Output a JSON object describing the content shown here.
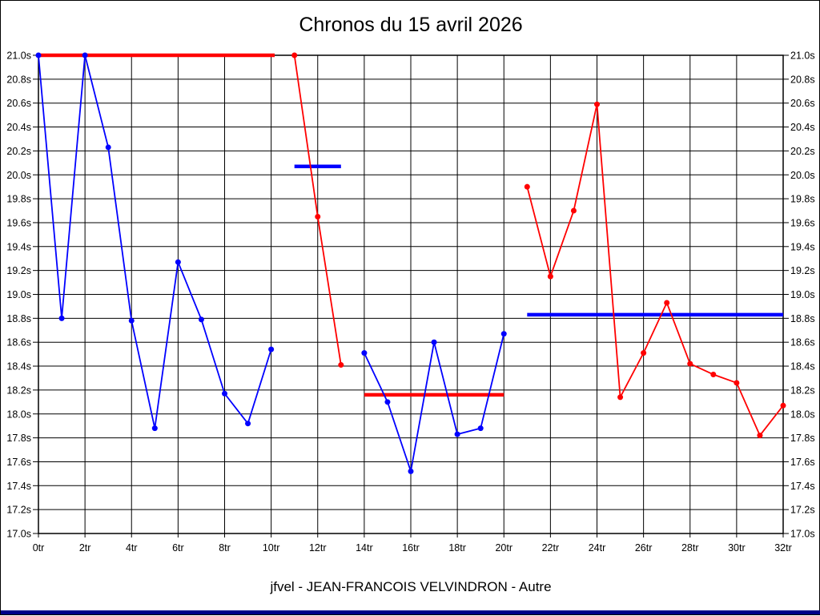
{
  "page": {
    "title": "Chronos du 15 avril 2026",
    "caption": "jfvel - JEAN-FRANCOIS VELVINDRON - Autre"
  },
  "chart_data": {
    "type": "line",
    "title": "Chronos du 15 avril 2026",
    "subtitle": "jfvel - JEAN-FRANCOIS VELVINDRON - Autre",
    "x_unit": "tr",
    "y_unit": "s",
    "xlim": [
      0,
      32
    ],
    "ylim": [
      17.0,
      21.0
    ],
    "grid": true,
    "legend": "none",
    "colors": {
      "blue": "#0000ff",
      "red": "#ff0000",
      "grid": "#000000"
    },
    "y_tick_labels_top_to_bottom": [
      "21.0s",
      "20.8s",
      "20.6s",
      "20.4s",
      "20.2s",
      "20.0s",
      "19.8s",
      "19.6s",
      "19.4s",
      "19.2s",
      "19.0s",
      "18.8s",
      "18.6s",
      "18.4s",
      "18.2s",
      "18.0s",
      "17.8s",
      "17.6s",
      "17.4s",
      "17.2s",
      "17.0s"
    ],
    "x_tick_labels": [
      "0tr",
      "2tr",
      "4tr",
      "6tr",
      "8tr",
      "10tr",
      "12tr",
      "14tr",
      "16tr",
      "18tr",
      "20tr",
      "22tr",
      "24tr",
      "26tr",
      "28tr",
      "30tr",
      "32tr"
    ],
    "series": [
      {
        "name": "laps-0-10-blue",
        "color": "blue",
        "x": [
          0,
          1,
          2,
          3,
          4,
          5,
          6,
          7,
          8,
          9,
          10
        ],
        "y": [
          21.0,
          18.8,
          21.0,
          20.23,
          18.78,
          17.88,
          19.27,
          18.79,
          18.17,
          17.92,
          18.54
        ]
      },
      {
        "name": "laps-11-13-red",
        "color": "red",
        "x": [
          11,
          12,
          13
        ],
        "y": [
          21.0,
          19.65,
          18.41
        ]
      },
      {
        "name": "laps-14-20-blue",
        "color": "blue",
        "x": [
          14,
          15,
          16,
          17,
          18,
          19,
          20
        ],
        "y": [
          18.51,
          18.1,
          17.52,
          18.6,
          17.83,
          17.88,
          18.67
        ]
      },
      {
        "name": "laps-21-32-red",
        "color": "red",
        "x": [
          21,
          22,
          23,
          24,
          25,
          26,
          27,
          28,
          29,
          30,
          31,
          32
        ],
        "y": [
          19.9,
          19.15,
          19.7,
          20.59,
          18.14,
          18.51,
          18.93,
          18.42,
          18.33,
          18.26,
          17.82,
          18.07
        ]
      }
    ],
    "average_lines": [
      {
        "name": "avg-segment-1",
        "color": "red",
        "value": 21.0,
        "x_start": 0,
        "x_end": 10.15
      },
      {
        "name": "avg-segment-2",
        "color": "blue",
        "value": 20.07,
        "x_start": 11,
        "x_end": 13
      },
      {
        "name": "avg-segment-3",
        "color": "red",
        "value": 18.16,
        "x_start": 14,
        "x_end": 20
      },
      {
        "name": "avg-segment-4",
        "color": "blue",
        "value": 18.83,
        "x_start": 21,
        "x_end": 32
      }
    ]
  }
}
